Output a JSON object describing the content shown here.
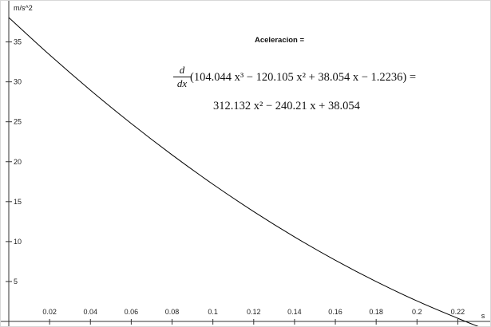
{
  "chart_data": {
    "type": "line",
    "title": "Aceleracion =",
    "xlabel": "s",
    "ylabel": "m/s^2",
    "xlim": [
      0,
      0.23
    ],
    "ylim": [
      0,
      40
    ],
    "x_ticks": [
      "0.02",
      "0.04",
      "0.06",
      "0.08",
      "0.1",
      "0.12",
      "0.14",
      "0.16",
      "0.18",
      "0.2",
      "0.22"
    ],
    "x_tick_values": [
      0.02,
      0.04,
      0.06,
      0.08,
      0.1,
      0.12,
      0.14,
      0.16,
      0.18,
      0.2,
      0.22
    ],
    "y_ticks": [
      "5",
      "10",
      "15",
      "20",
      "25",
      "30",
      "35"
    ],
    "y_tick_values": [
      5,
      10,
      15,
      20,
      25,
      30,
      35
    ],
    "series": [
      {
        "x": [
          0,
          0.02,
          0.04,
          0.06,
          0.08,
          0.1,
          0.12,
          0.14,
          0.16,
          0.18,
          0.2,
          0.22,
          0.23
        ],
        "y": [
          38.054,
          33.379,
          28.954,
          24.779,
          20.854,
          17.18,
          13.756,
          10.582,
          7.658,
          4.985,
          2.562,
          0.389,
          -0.636
        ]
      }
    ],
    "annotations": {
      "frac_num": "d",
      "frac_den": "dx",
      "line1": "(104.044 x³ − 120.105 x² + 38.054 x − 1.2236) =",
      "line2": "312.132 x² − 240.21 x + 38.054"
    },
    "grid": false,
    "line_color": "#000000"
  }
}
